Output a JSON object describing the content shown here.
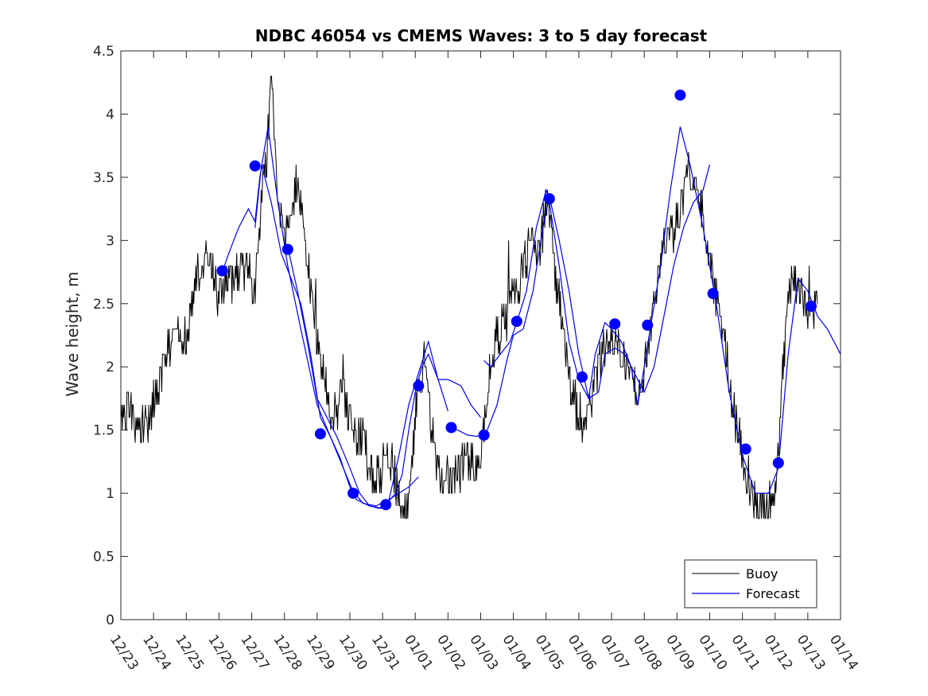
{
  "chart_data": {
    "type": "line",
    "title": "NDBC 46054 vs CMEMS Waves: 3 to 5 day forecast",
    "xlabel": "",
    "ylabel": "Wave height, m",
    "x_unit": "days since 12/23",
    "xlim": [
      0,
      22
    ],
    "ylim": [
      0,
      4.5
    ],
    "y_ticks": [
      0,
      0.5,
      1,
      1.5,
      2,
      2.5,
      3,
      3.5,
      4,
      4.5
    ],
    "y_tick_labels": [
      "0",
      "0.5",
      "1",
      "1.5",
      "2",
      "2.5",
      "3",
      "3.5",
      "4",
      "4.5"
    ],
    "x_ticks": [
      0,
      1,
      2,
      3,
      4,
      5,
      6,
      7,
      8,
      9,
      10,
      11,
      12,
      13,
      14,
      15,
      16,
      17,
      18,
      19,
      20,
      21,
      22
    ],
    "x_tick_labels": [
      "12/23",
      "12/24",
      "12/25",
      "12/26",
      "12/27",
      "12/28",
      "12/29",
      "12/30",
      "12/31",
      "01/01",
      "01/02",
      "01/03",
      "01/04",
      "01/05",
      "01/06",
      "01/07",
      "01/08",
      "01/09",
      "01/10",
      "01/11",
      "01/12",
      "01/13",
      "01/14"
    ],
    "legend": {
      "position": "bottom-right",
      "entries": [
        "Buoy",
        "Forecast"
      ]
    },
    "colors": {
      "buoy": "#000000",
      "forecast": "#0000ee",
      "marker": "#0000ff",
      "axes": "#262626"
    },
    "buoy_anchors": {
      "x": [
        0,
        0.3,
        0.6,
        0.8,
        1.0,
        1.4,
        1.7,
        2.0,
        2.3,
        2.6,
        3.0,
        3.4,
        3.7,
        4.0,
        4.1,
        4.3,
        4.45,
        4.6,
        4.8,
        5.0,
        5.2,
        5.4,
        5.6,
        5.9,
        6.2,
        6.5,
        6.8,
        7.1,
        7.4,
        7.6,
        7.8,
        8.0,
        8.2,
        8.4,
        8.6,
        8.8,
        9.0,
        9.1,
        9.3,
        9.5,
        9.7,
        10.0,
        10.3,
        10.6,
        10.9,
        11.1,
        11.3,
        11.6,
        11.9,
        12.2,
        12.5,
        12.8,
        13.0,
        13.1,
        13.3,
        13.5,
        13.8,
        14.0,
        14.2,
        14.4,
        14.6,
        14.8,
        15.0,
        15.2,
        15.5,
        15.8,
        16.0,
        16.2,
        16.4,
        16.7,
        17.0,
        17.3,
        17.6,
        17.9,
        18.1,
        18.4,
        18.7,
        19.0,
        19.3,
        19.6,
        19.9,
        20.1,
        20.3,
        20.5,
        20.7,
        20.9,
        21.1,
        21.3
      ],
      "y": [
        1.6,
        1.7,
        1.5,
        1.5,
        1.7,
        2.1,
        2.3,
        2.2,
        2.7,
        2.9,
        2.6,
        2.7,
        2.8,
        2.7,
        2.6,
        3.4,
        3.6,
        4.2,
        3.4,
        3.0,
        3.2,
        3.5,
        3.0,
        2.4,
        1.9,
        1.6,
        1.8,
        1.5,
        1.4,
        1.2,
        1.1,
        1.2,
        1.3,
        1.1,
        0.85,
        0.9,
        1.6,
        1.9,
        2.05,
        1.5,
        1.2,
        1.1,
        1.2,
        1.25,
        1.15,
        1.5,
        2.0,
        2.3,
        2.6,
        2.6,
        3.0,
        2.9,
        3.3,
        3.2,
        2.7,
        2.3,
        1.8,
        1.6,
        1.5,
        1.8,
        2.0,
        2.2,
        2.3,
        2.2,
        2.0,
        1.8,
        2.0,
        2.3,
        2.7,
        3.0,
        3.2,
        3.5,
        3.5,
        3.0,
        2.7,
        2.3,
        1.7,
        1.3,
        1.0,
        0.9,
        0.9,
        1.3,
        2.2,
        2.7,
        2.6,
        2.5,
        2.4,
        2.5
      ]
    },
    "forecast_segments": [
      {
        "x": [
          3.1,
          3.3,
          3.6,
          3.9,
          4.1,
          4.25,
          4.5,
          4.8,
          5.1,
          5.5,
          6.0,
          6.4,
          6.7,
          7.0,
          7.4,
          7.8,
          8.2,
          8.5,
          8.8,
          9.1
        ],
        "y": [
          2.75,
          2.9,
          3.1,
          3.25,
          3.15,
          3.5,
          3.9,
          3.3,
          2.8,
          2.3,
          1.7,
          1.45,
          1.28,
          1.05,
          0.92,
          0.9,
          0.95,
          1.0,
          1.05,
          1.13
        ]
      },
      {
        "x": [
          4.1,
          4.3,
          4.6,
          4.9,
          5.2,
          5.5,
          5.8,
          6.1,
          6.4,
          6.8,
          7.2,
          7.6,
          8.0,
          8.4,
          8.6,
          8.8,
          9.0,
          9.2,
          9.4,
          9.7,
          10.0
        ],
        "y": [
          3.1,
          3.6,
          3.3,
          2.9,
          2.7,
          2.5,
          2.1,
          1.6,
          1.45,
          1.2,
          0.95,
          0.9,
          0.88,
          1.0,
          1.15,
          1.5,
          1.8,
          2.0,
          2.1,
          1.9,
          1.65
        ]
      },
      {
        "x": [
          5.1,
          5.4,
          5.7,
          6.0,
          6.3,
          6.6,
          7.0,
          7.3,
          7.6,
          7.9,
          8.2,
          8.5,
          8.8,
          9.1,
          9.4,
          9.7,
          10.0,
          10.4,
          10.7,
          11.0
        ],
        "y": [
          2.95,
          2.6,
          2.2,
          1.75,
          1.6,
          1.45,
          1.2,
          1.0,
          0.9,
          0.88,
          0.95,
          1.3,
          1.7,
          1.95,
          2.2,
          1.9,
          1.9,
          1.85,
          1.7,
          1.6
        ]
      },
      {
        "x": [
          10.0,
          10.3,
          10.6,
          10.9,
          11.2,
          11.5,
          11.8,
          12.0,
          12.3,
          12.6,
          12.9,
          13.1,
          13.4,
          13.7,
          14.0,
          14.3,
          14.6,
          14.8,
          15.1,
          15.4,
          15.7,
          16.0,
          16.3,
          16.6,
          16.9,
          17.2,
          17.5,
          17.8,
          18.0
        ],
        "y": [
          1.5,
          1.5,
          1.46,
          1.45,
          1.5,
          1.7,
          2.05,
          2.25,
          2.3,
          2.6,
          3.1,
          3.35,
          3.0,
          2.6,
          2.1,
          1.75,
          1.8,
          2.1,
          2.15,
          2.1,
          1.95,
          1.8,
          2.0,
          2.4,
          2.8,
          3.1,
          3.3,
          3.4,
          3.6
        ]
      },
      {
        "x": [
          11.1,
          11.3,
          11.6,
          11.9,
          12.1,
          12.4,
          12.7,
          13.0,
          13.1,
          13.4,
          13.7,
          14.0,
          14.3,
          14.5,
          14.8,
          15.0,
          15.3,
          15.6,
          15.8,
          16.0,
          16.2,
          16.5,
          16.8,
          17.1,
          17.4,
          17.8,
          18.2,
          18.6,
          19.0,
          19.4,
          19.8,
          20.1,
          20.4,
          20.7,
          21.0,
          21.3,
          21.6,
          22.0
        ],
        "y": [
          2.05,
          2.0,
          2.1,
          2.2,
          2.35,
          2.6,
          3.1,
          3.4,
          3.3,
          2.8,
          2.2,
          1.9,
          1.75,
          2.1,
          2.35,
          2.3,
          2.2,
          2.0,
          1.7,
          2.0,
          2.33,
          2.8,
          3.4,
          3.9,
          3.6,
          3.1,
          2.5,
          1.8,
          1.3,
          1.0,
          1.0,
          1.2,
          2.1,
          2.7,
          2.6,
          2.4,
          2.3,
          2.1
        ]
      }
    ],
    "forecast_markers": {
      "x": [
        3.1,
        4.1,
        5.1,
        6.1,
        7.1,
        8.1,
        9.1,
        10.1,
        11.1,
        12.1,
        13.1,
        14.1,
        15.1,
        16.1,
        17.1,
        18.1,
        19.1,
        20.1,
        21.1
      ],
      "y": [
        2.76,
        3.59,
        2.93,
        1.47,
        1.0,
        0.91,
        1.85,
        1.52,
        1.46,
        2.36,
        3.33,
        1.92,
        2.34,
        2.33,
        4.15,
        2.58,
        1.35,
        1.24,
        2.48
      ]
    }
  }
}
